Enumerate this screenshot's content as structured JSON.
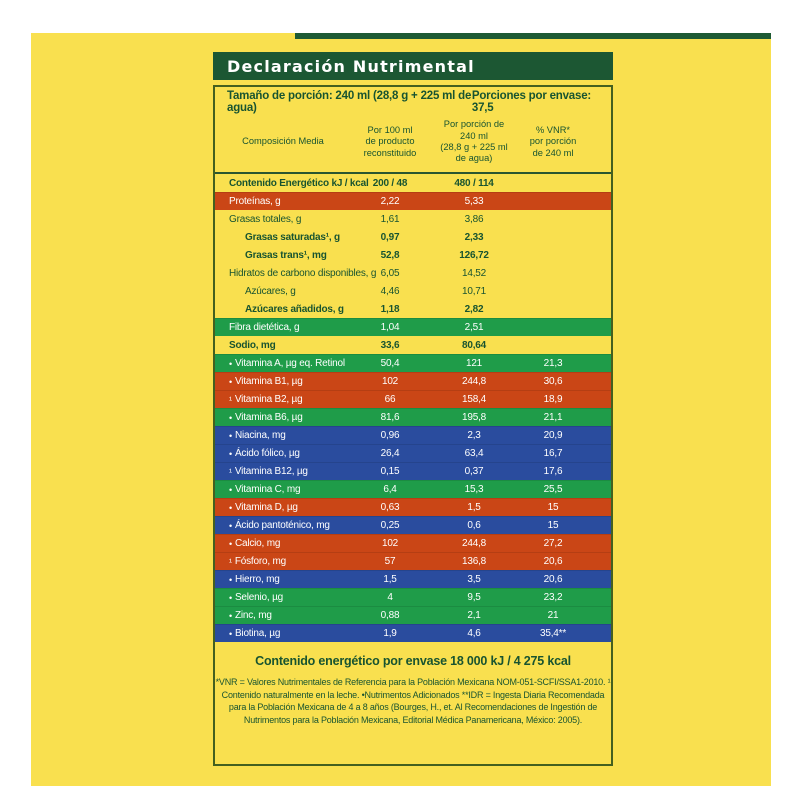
{
  "colors": {
    "background_yellow": "#F9E04F",
    "dark_green": "#185430",
    "title_bar_green": "#1C5733",
    "row_orange": "#CA4616",
    "row_green": "#1F9C49",
    "row_blue": "#2A4C9E",
    "box_border": "#44601F"
  },
  "label": {
    "title": "Declaración Nutrimental",
    "serving_size": "Tamaño de porción: 240 ml (28,8 g + 225 ml de agua)",
    "servings_per_container": "Porciones por envase: 37,5",
    "columns": [
      "Composición Media",
      "Por 100 ml\nde producto\nreconstituido",
      "Por porción de 240 ml\n(28,8 g + 225 ml\nde agua)",
      "% VNR*\npor porción\nde 240 ml"
    ]
  },
  "table": {
    "rows": [
      {
        "label": "Contenido Energético kJ / kcal",
        "prefix": "",
        "indent": 0,
        "bold": true,
        "bg": "yellow",
        "v100": "200 / 48",
        "vp": "480 / 114",
        "vnr": ""
      },
      {
        "label": "Proteínas, g",
        "prefix": "",
        "indent": 0,
        "bold": false,
        "bg": "orange",
        "v100": "2,22",
        "vp": "5,33",
        "vnr": ""
      },
      {
        "label": "Grasas totales, g",
        "prefix": "",
        "indent": 0,
        "bold": false,
        "bg": "yellow",
        "v100": "1,61",
        "vp": "3,86",
        "vnr": ""
      },
      {
        "label": "Grasas saturadas¹, g",
        "prefix": "",
        "indent": 1,
        "bold": true,
        "bg": "yellow",
        "v100": "0,97",
        "vp": "2,33",
        "vnr": ""
      },
      {
        "label": "Grasas trans¹, mg",
        "prefix": "",
        "indent": 1,
        "bold": true,
        "bg": "yellow",
        "v100": "52,8",
        "vp": "126,72",
        "vnr": ""
      },
      {
        "label": "Hidratos de carbono disponibles, g",
        "prefix": "",
        "indent": 0,
        "bold": false,
        "bg": "yellow",
        "v100": "6,05",
        "vp": "14,52",
        "vnr": ""
      },
      {
        "label": "Azúcares, g",
        "prefix": "",
        "indent": 1,
        "bold": false,
        "bg": "yellow",
        "v100": "4,46",
        "vp": "10,71",
        "vnr": ""
      },
      {
        "label": "Azúcares añadidos, g",
        "prefix": "",
        "indent": 1,
        "bold": true,
        "bg": "yellow",
        "v100": "1,18",
        "vp": "2,82",
        "vnr": ""
      },
      {
        "label": "Fibra dietética, g",
        "prefix": "",
        "indent": 0,
        "bold": false,
        "bg": "green",
        "v100": "1,04",
        "vp": "2,51",
        "vnr": ""
      },
      {
        "label": "Sodio, mg",
        "prefix": "",
        "indent": 0,
        "bold": true,
        "bg": "yellow",
        "v100": "33,6",
        "vp": "80,64",
        "vnr": ""
      },
      {
        "label": "Vitamina A, µg eq. Retinol",
        "prefix": "•",
        "indent": 0,
        "bold": false,
        "bg": "green",
        "v100": "50,4",
        "vp": "121",
        "vnr": "21,3"
      },
      {
        "label": "Vitamina B1, µg",
        "prefix": "•",
        "indent": 0,
        "bold": false,
        "bg": "orange",
        "v100": "102",
        "vp": "244,8",
        "vnr": "30,6"
      },
      {
        "label": "Vitamina B2, µg",
        "prefix": "¹",
        "indent": 0,
        "bold": false,
        "bg": "orange",
        "v100": "66",
        "vp": "158,4",
        "vnr": "18,9"
      },
      {
        "label": "Vitamina B6, µg",
        "prefix": "•",
        "indent": 0,
        "bold": false,
        "bg": "green",
        "v100": "81,6",
        "vp": "195,8",
        "vnr": "21,1"
      },
      {
        "label": "Niacina, mg",
        "prefix": "•",
        "indent": 0,
        "bold": false,
        "bg": "blue",
        "v100": "0,96",
        "vp": "2,3",
        "vnr": "20,9"
      },
      {
        "label": "Ácido fólico, µg",
        "prefix": "•",
        "indent": 0,
        "bold": false,
        "bg": "blue",
        "v100": "26,4",
        "vp": "63,4",
        "vnr": "16,7"
      },
      {
        "label": "Vitamina B12, µg",
        "prefix": "¹",
        "indent": 0,
        "bold": false,
        "bg": "blue",
        "v100": "0,15",
        "vp": "0,37",
        "vnr": "17,6"
      },
      {
        "label": "Vitamina C, mg",
        "prefix": "•",
        "indent": 0,
        "bold": false,
        "bg": "green",
        "v100": "6,4",
        "vp": "15,3",
        "vnr": "25,5"
      },
      {
        "label": "Vitamina D, µg",
        "prefix": "•",
        "indent": 0,
        "bold": false,
        "bg": "orange",
        "v100": "0,63",
        "vp": "1,5",
        "vnr": "15"
      },
      {
        "label": "Ácido pantoténico, mg",
        "prefix": "•",
        "indent": 0,
        "bold": false,
        "bg": "blue",
        "v100": "0,25",
        "vp": "0,6",
        "vnr": "15"
      },
      {
        "label": "Calcio, mg",
        "prefix": "•",
        "indent": 0,
        "bold": false,
        "bg": "orange",
        "v100": "102",
        "vp": "244,8",
        "vnr": "27,2"
      },
      {
        "label": "Fósforo, mg",
        "prefix": "¹",
        "indent": 0,
        "bold": false,
        "bg": "orange",
        "v100": "57",
        "vp": "136,8",
        "vnr": "20,6"
      },
      {
        "label": "Hierro, mg",
        "prefix": "•",
        "indent": 0,
        "bold": false,
        "bg": "blue",
        "v100": "1,5",
        "vp": "3,5",
        "vnr": "20,6"
      },
      {
        "label": "Selenio, µg",
        "prefix": "•",
        "indent": 0,
        "bold": false,
        "bg": "green",
        "v100": "4",
        "vp": "9,5",
        "vnr": "23,2"
      },
      {
        "label": "Zinc, mg",
        "prefix": "•",
        "indent": 0,
        "bold": false,
        "bg": "green",
        "v100": "0,88",
        "vp": "2,1",
        "vnr": "21"
      },
      {
        "label": "Biotina, µg",
        "prefix": "•",
        "indent": 0,
        "bold": false,
        "bg": "blue",
        "v100": "1,9",
        "vp": "4,6",
        "vnr": "35,4**"
      }
    ]
  },
  "footer": {
    "energy_line": "Contenido energético por envase 18 000 kJ / 4 275 kcal",
    "footnote_lines": [
      "*VNR = Valores Nutrimentales de Referencia para la Población Mexicana NOM-051-SCFI/SSA1-2010. ¹",
      "Contenido naturalmente en la leche. •Nutrimentos Adicionados  **IDR = Ingesta Diaria Recomendada",
      "para la Población Mexicana de 4 a 8 años (Bourges, H., et. Al Recomendaciones de Ingestión de",
      "Nutrimentos para la Población Mexicana, Editorial Médica Panamericana, México: 2005)."
    ]
  }
}
